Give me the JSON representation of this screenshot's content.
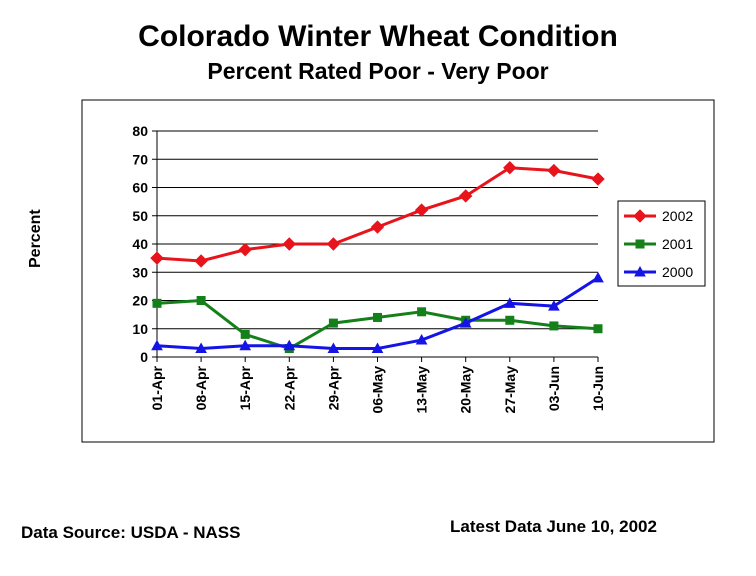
{
  "chart_data": {
    "type": "line",
    "title": "Colorado Winter Wheat Condition",
    "subtitle": "Percent Rated Poor -  Very Poor",
    "ylabel": "Percent",
    "xlabel": "",
    "ylim": [
      0,
      80
    ],
    "yticks": [
      0,
      10,
      20,
      30,
      40,
      50,
      60,
      70,
      80
    ],
    "grid": true,
    "legend_position": "right",
    "categories": [
      "01-Apr",
      "08-Apr",
      "15-Apr",
      "22-Apr",
      "29-Apr",
      "06-May",
      "13-May",
      "20-May",
      "27-May",
      "03-Jun",
      "10-Jun"
    ],
    "series": [
      {
        "name": "2002",
        "color": "#e8141c",
        "marker": "diamond",
        "values": [
          35,
          34,
          38,
          40,
          40,
          46,
          52,
          57,
          67,
          66,
          63
        ]
      },
      {
        "name": "2001",
        "color": "#15801a",
        "marker": "square",
        "values": [
          19,
          20,
          8,
          3,
          12,
          14,
          16,
          13,
          13,
          11,
          10
        ]
      },
      {
        "name": "2000",
        "color": "#1414e6",
        "marker": "triangle",
        "values": [
          4,
          3,
          4,
          4,
          3,
          3,
          6,
          12,
          19,
          18,
          28
        ]
      }
    ]
  },
  "footer": {
    "source": "Data Source: USDA - NASS",
    "latest": "Latest Data June 10, 2002"
  }
}
